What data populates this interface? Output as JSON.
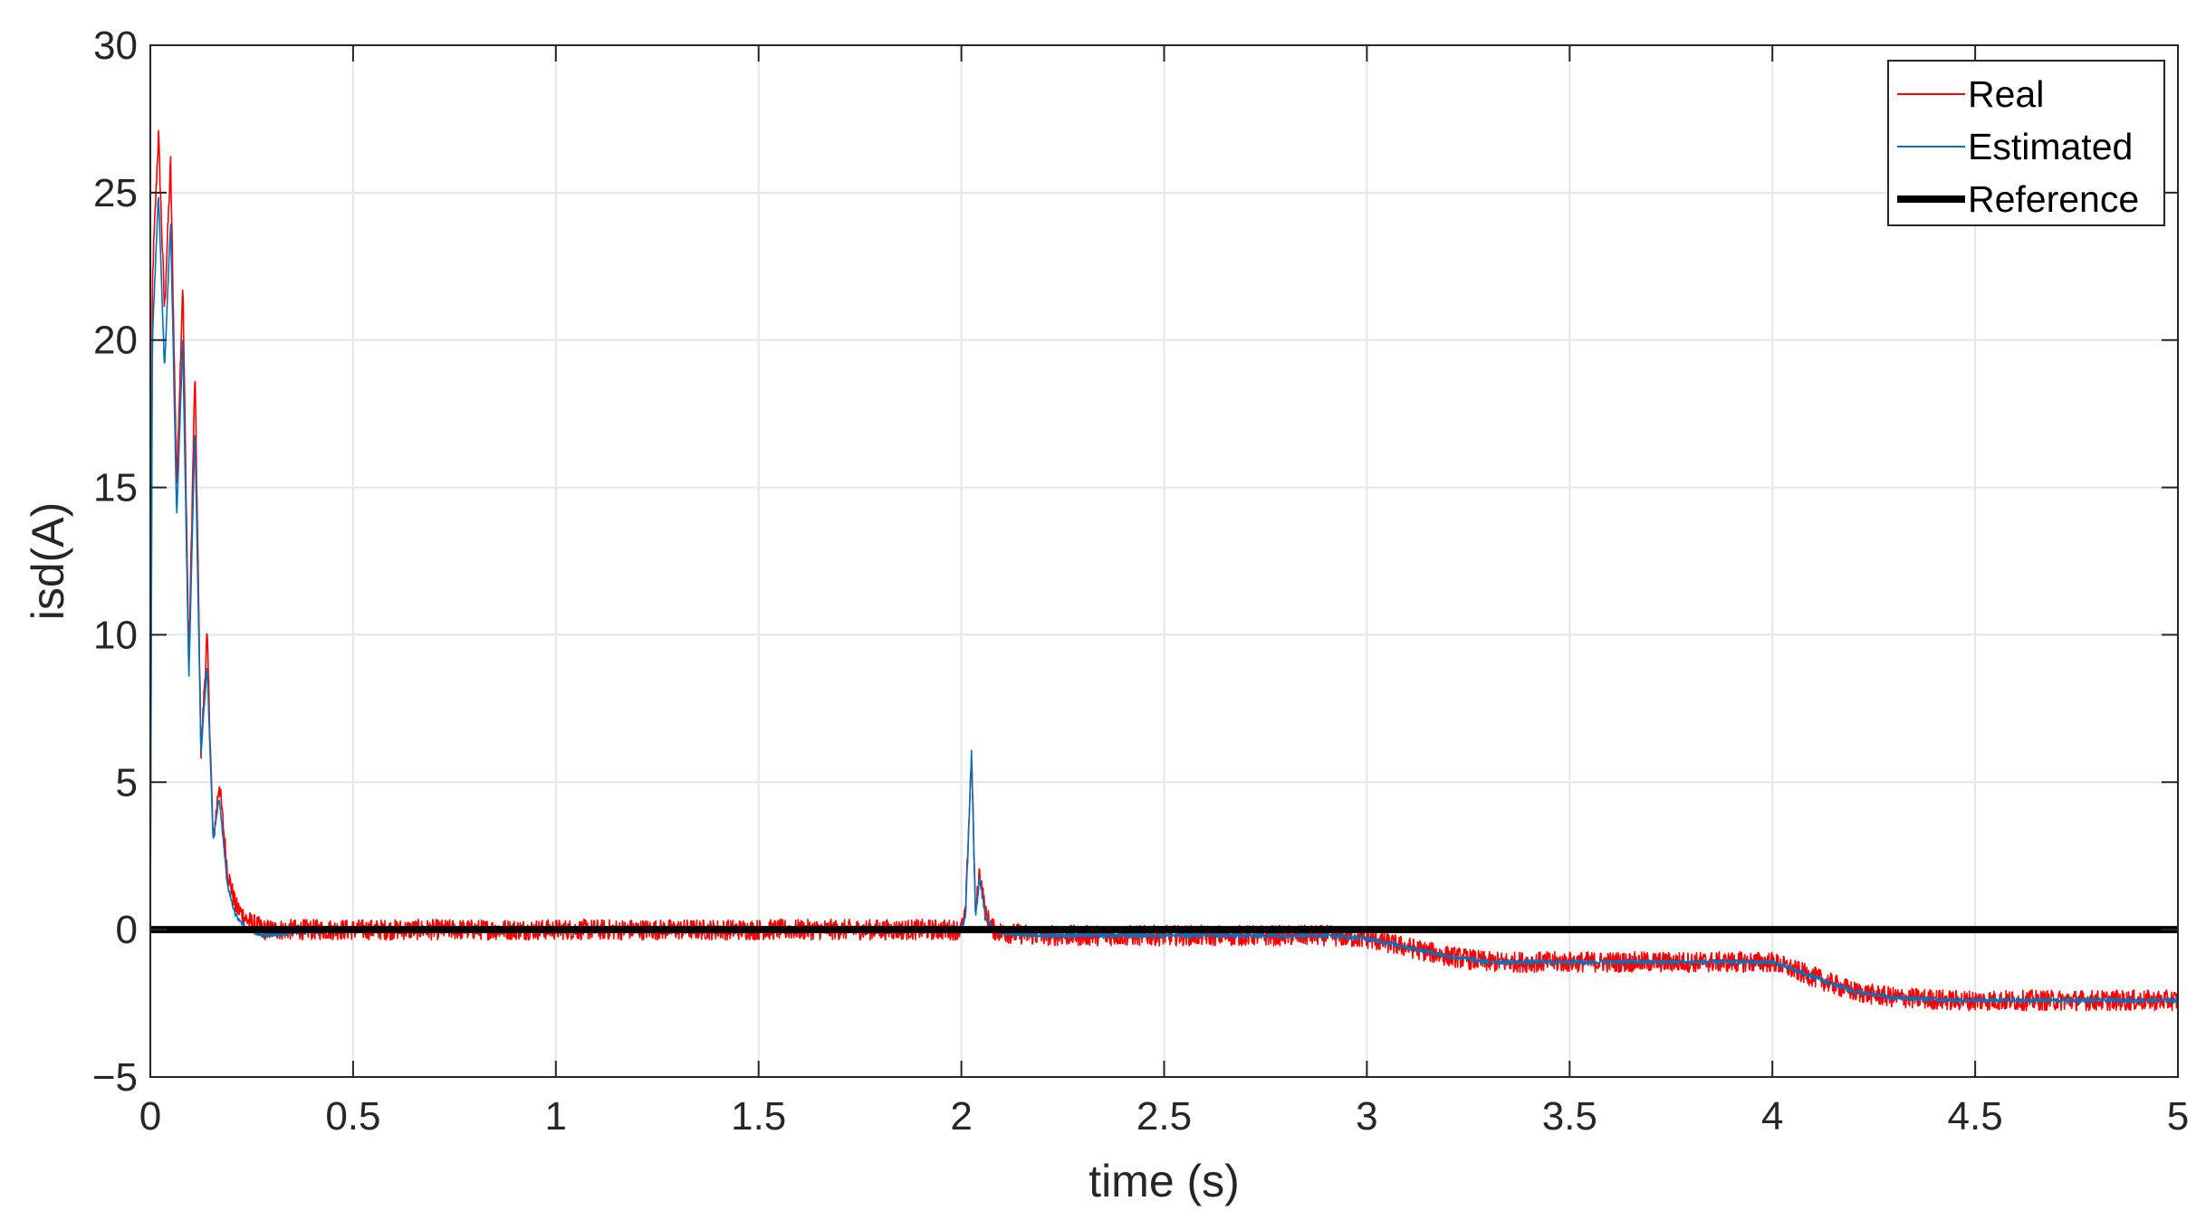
{
  "chart_data": {
    "type": "line",
    "title": "",
    "xlabel": "time (s)",
    "ylabel": "isd(A)",
    "xlim": [
      0,
      5
    ],
    "ylim": [
      -5,
      30
    ],
    "xticks": [
      0,
      0.5,
      1,
      1.5,
      2,
      2.5,
      3,
      3.5,
      4,
      4.5,
      5
    ],
    "xtick_labels": [
      "0",
      "0.5",
      "1",
      "1.5",
      "2",
      "2.5",
      "3",
      "3.5",
      "4",
      "4.5",
      "5"
    ],
    "yticks": [
      -5,
      0,
      5,
      10,
      15,
      20,
      25,
      30
    ],
    "ytick_labels": [
      "−5",
      "0",
      "5",
      "10",
      "15",
      "20",
      "25",
      "30"
    ],
    "grid": true,
    "legend_position": "top-right",
    "series": [
      {
        "name": "Real",
        "color": "#ff0000",
        "noise_amplitude": 0.35,
        "x": [
          0,
          0.005,
          0.02,
          0.035,
          0.05,
          0.065,
          0.08,
          0.095,
          0.11,
          0.125,
          0.14,
          0.155,
          0.17,
          0.19,
          0.21,
          0.24,
          0.28,
          0.35,
          0.5,
          1.0,
          1.5,
          1.98,
          2.0,
          2.01,
          2.025,
          2.035,
          2.045,
          2.06,
          2.08,
          2.1,
          2.2,
          2.5,
          2.9,
          3.0,
          3.1,
          3.2,
          3.3,
          3.5,
          3.9,
          4.0,
          4.1,
          4.2,
          4.3,
          4.45,
          4.6,
          5.0
        ],
        "y": [
          0,
          22,
          27,
          21,
          26,
          15,
          22,
          9,
          19,
          6,
          10,
          3,
          5,
          2,
          0.8,
          0.3,
          0,
          0,
          0,
          0,
          0,
          0,
          0,
          0.5,
          6,
          0.5,
          2,
          0.5,
          0,
          -0.1,
          -0.2,
          -0.2,
          -0.2,
          -0.3,
          -0.6,
          -0.9,
          -1.1,
          -1.1,
          -1.1,
          -1.1,
          -1.6,
          -2.1,
          -2.3,
          -2.4,
          -2.4,
          -2.4
        ]
      },
      {
        "name": "Estimated",
        "color": "#0072bd",
        "noise_amplitude": 0.08,
        "x": [
          0,
          0.005,
          0.02,
          0.035,
          0.05,
          0.065,
          0.08,
          0.095,
          0.11,
          0.125,
          0.14,
          0.155,
          0.17,
          0.19,
          0.21,
          0.24,
          0.28,
          0.35,
          0.5,
          1.0,
          1.5,
          1.98,
          2.0,
          2.01,
          2.025,
          2.035,
          2.045,
          2.06,
          2.08,
          2.1,
          2.2,
          2.5,
          2.9,
          3.0,
          3.1,
          3.2,
          3.3,
          3.5,
          3.9,
          4.0,
          4.1,
          4.2,
          4.3,
          4.45,
          4.6,
          5.0
        ],
        "y": [
          0,
          20,
          25,
          19,
          24,
          14,
          20,
          8.5,
          17,
          6,
          9,
          3,
          4.5,
          1.5,
          0.5,
          0,
          -0.2,
          -0.1,
          0,
          0,
          0,
          0,
          0,
          0.4,
          6,
          0.4,
          1.8,
          0.4,
          0,
          -0.1,
          -0.2,
          -0.2,
          -0.2,
          -0.3,
          -0.6,
          -0.9,
          -1.1,
          -1.1,
          -1.1,
          -1.1,
          -1.6,
          -2.1,
          -2.3,
          -2.4,
          -2.4,
          -2.4
        ]
      },
      {
        "name": "Reference",
        "color": "#000000",
        "x": [
          0,
          5
        ],
        "y": [
          0,
          0
        ]
      }
    ]
  }
}
